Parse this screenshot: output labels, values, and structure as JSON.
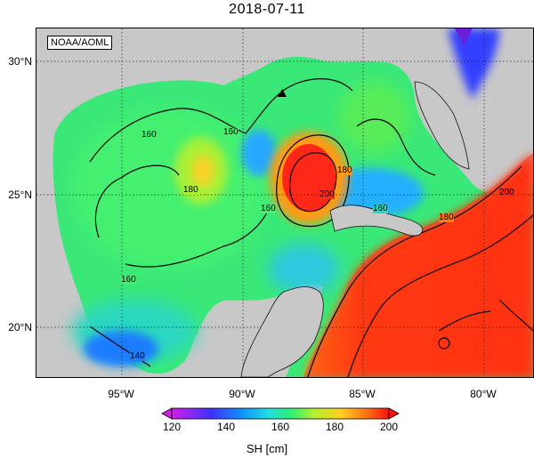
{
  "title": "2018-07-11",
  "credit": "NOAA/AOML",
  "map": {
    "lat_ticks": [
      "30°N",
      "25°N",
      "20°N"
    ],
    "lon_ticks": [
      "95°W",
      "90°W",
      "85°W",
      "80°W"
    ],
    "contour_labels": [
      "160",
      "160",
      "160",
      "160",
      "160",
      "180",
      "180",
      "180",
      "200",
      "200",
      "140"
    ],
    "colors": {
      "land": "#c8c8c8",
      "water_low": "#1e6cff",
      "water_mid": "#3cf03c",
      "water_high": "#ff2010"
    }
  },
  "colorbar": {
    "title": "SH [cm]",
    "ticks": [
      "120",
      "140",
      "160",
      "180",
      "200"
    ]
  }
}
